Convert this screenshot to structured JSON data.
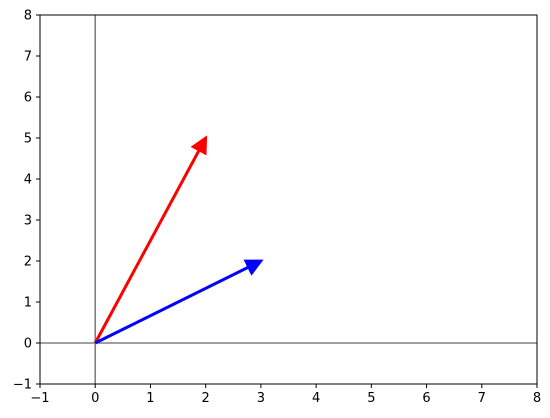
{
  "chart_data": {
    "type": "vector",
    "title": "",
    "xlabel": "",
    "ylabel": "",
    "xlim": [
      -1,
      8
    ],
    "ylim": [
      -1,
      8
    ],
    "x_ticks": [
      -1,
      0,
      1,
      2,
      3,
      4,
      5,
      6,
      7,
      8
    ],
    "y_ticks": [
      -1,
      0,
      1,
      2,
      3,
      4,
      5,
      6,
      7,
      8
    ],
    "grid": false,
    "legend": "none",
    "reference_lines": {
      "x": 0,
      "y": 0,
      "color": "#808080"
    },
    "series": [
      {
        "origin": [
          0,
          0
        ],
        "vector": [
          2,
          5
        ],
        "color": "#ff0000"
      },
      {
        "origin": [
          0,
          0
        ],
        "vector": [
          3,
          2
        ],
        "color": "#0000ff"
      }
    ]
  }
}
